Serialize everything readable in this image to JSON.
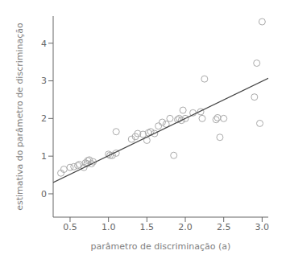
{
  "chart_data": {
    "type": "scatter",
    "xlabel": "parâmetro de discriminação (a)",
    "ylabel": "estimativa do parâmetro de discriminação",
    "xlim": [
      0.28,
      3.08
    ],
    "ylim": [
      -0.62,
      4.72
    ],
    "xticks": [
      0.5,
      {
        "value": 1.0,
        "label": "1.0"
      },
      1.5,
      {
        "value": 2.0,
        "label": "2.0"
      },
      2.5,
      {
        "value": 3.0,
        "label": "3.0"
      }
    ],
    "yticks": [
      0,
      1,
      2,
      3,
      4
    ],
    "grid": false,
    "series": [
      {
        "type": "scatter",
        "marker": "circle",
        "color": "#aaaaaa",
        "x": [
          0.38,
          0.42,
          0.5,
          0.55,
          0.6,
          0.62,
          0.68,
          0.7,
          0.72,
          0.73,
          0.75,
          0.78,
          0.8,
          1.0,
          1.02,
          1.05,
          1.1,
          1.1,
          1.3,
          1.35,
          1.38,
          1.45,
          1.5,
          1.52,
          1.55,
          1.6,
          1.65,
          1.7,
          1.75,
          1.8,
          1.85,
          1.9,
          1.92,
          1.95,
          1.97,
          2.0,
          2.1,
          2.2,
          2.22,
          2.25,
          2.4,
          2.42,
          2.45,
          2.5,
          2.9,
          2.93,
          2.97,
          3.0
        ],
        "values": [
          0.55,
          0.65,
          0.7,
          0.72,
          0.75,
          0.78,
          0.7,
          0.82,
          0.8,
          0.88,
          0.9,
          0.8,
          0.85,
          1.05,
          1.02,
          1.02,
          1.08,
          1.65,
          1.45,
          1.52,
          1.6,
          1.58,
          1.42,
          1.62,
          1.65,
          1.6,
          1.8,
          1.9,
          1.85,
          2.0,
          1.02,
          1.97,
          2.0,
          1.95,
          2.22,
          2.0,
          2.15,
          2.18,
          2.0,
          3.05,
          1.97,
          2.02,
          1.5,
          2.0,
          2.57,
          3.47,
          1.87,
          4.57
        ]
      },
      {
        "type": "line",
        "color": "#444444",
        "x": [
          0.28,
          3.08
        ],
        "values": [
          0.3,
          3.07
        ]
      }
    ]
  }
}
